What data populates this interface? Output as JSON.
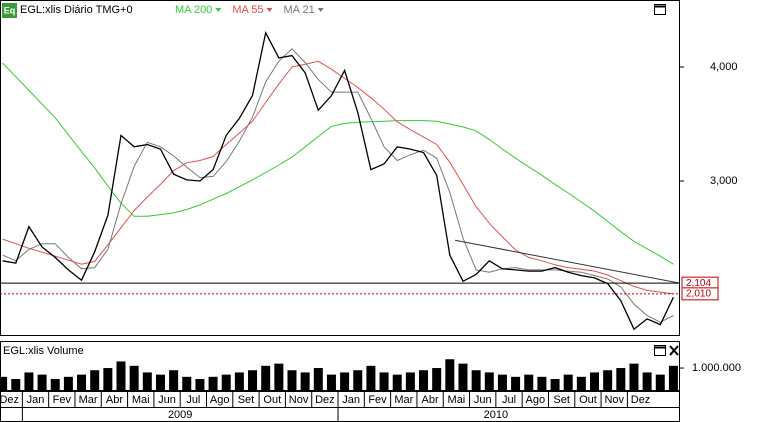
{
  "chart_data": {
    "type": "line",
    "icon": "Eq",
    "title": "EGL:xlis Diário TMG+0",
    "x": [
      0.25,
      0.75,
      1.25,
      1.75,
      2.25,
      2.75,
      3.25,
      3.75,
      4.25,
      4.75,
      5.25,
      5.75,
      6.25,
      6.75,
      7.25,
      7.75,
      8.25,
      8.75,
      9.25,
      9.75,
      10.25,
      10.75,
      11.25,
      11.75,
      12.25,
      12.75,
      13.25,
      13.75,
      14.25,
      14.75,
      15.25,
      15.75,
      16.25,
      16.75,
      17.25,
      17.75,
      18.25,
      18.75,
      19.25,
      19.75,
      20.25,
      20.75,
      21.25,
      21.75,
      22.25,
      22.75,
      23.25,
      23.75,
      24.25,
      24.75,
      25.25,
      25.75
    ],
    "xlim": [
      0.15,
      26.0
    ],
    "ylim": [
      1649,
      4588
    ],
    "yticks": [
      {
        "value": 3000,
        "label": "3,000"
      },
      {
        "value": 4000,
        "label": "4,000"
      }
    ],
    "price": {
      "color": "#000000",
      "values": [
        2300,
        2280,
        2600,
        2420,
        2330,
        2220,
        2130,
        2380,
        2700,
        3400,
        3300,
        3320,
        3280,
        3060,
        3010,
        3000,
        3100,
        3400,
        3550,
        3750,
        4300,
        4080,
        4100,
        3950,
        3620,
        3750,
        3970,
        3600,
        3100,
        3150,
        3300,
        3280,
        3250,
        3050,
        2350,
        2120,
        2180,
        2300,
        2230,
        2220,
        2210,
        2210,
        2240,
        2200,
        2170,
        2150,
        2100,
        1950,
        1700,
        1790,
        1740,
        1980
      ]
    },
    "series": [
      {
        "name": "MA 200",
        "color": "#33cc33",
        "values": [
          4035,
          3915,
          3795,
          3675,
          3555,
          3405,
          3260,
          3115,
          2955,
          2805,
          2690,
          2690,
          2705,
          2720,
          2750,
          2790,
          2840,
          2890,
          2950,
          3010,
          3075,
          3140,
          3210,
          3300,
          3390,
          3480,
          3505,
          3515,
          3520,
          3525,
          3530,
          3530,
          3530,
          3525,
          3500,
          3475,
          3440,
          3365,
          3280,
          3200,
          3125,
          3050,
          2970,
          2895,
          2815,
          2735,
          2645,
          2555,
          2470,
          2405,
          2340,
          2270
        ]
      },
      {
        "name": "MA 55",
        "color": "#e05050",
        "values": [
          2490,
          2450,
          2410,
          2375,
          2340,
          2305,
          2270,
          2295,
          2440,
          2590,
          2740,
          2860,
          2970,
          3090,
          3160,
          3180,
          3215,
          3320,
          3420,
          3525,
          3690,
          3850,
          4000,
          4025,
          4050,
          3980,
          3900,
          3820,
          3730,
          3630,
          3520,
          3450,
          3385,
          3320,
          3165,
          2970,
          2775,
          2630,
          2510,
          2395,
          2330,
          2300,
          2265,
          2240,
          2225,
          2210,
          2175,
          2125,
          2075,
          2040,
          2025,
          2010
        ]
      },
      {
        "name": "MA 21",
        "color": "#777777",
        "values": [
          2350,
          2300,
          2400,
          2450,
          2450,
          2330,
          2230,
          2240,
          2400,
          2800,
          3130,
          3340,
          3300,
          3220,
          3120,
          3030,
          3040,
          3170,
          3350,
          3560,
          3870,
          4050,
          4160,
          4040,
          3890,
          3780,
          3780,
          3780,
          3550,
          3300,
          3180,
          3230,
          3270,
          3200,
          2900,
          2500,
          2220,
          2200,
          2230,
          2240,
          2220,
          2220,
          2220,
          2210,
          2200,
          2170,
          2140,
          2070,
          1920,
          1820,
          1760,
          1820
        ]
      }
    ],
    "trendline": {
      "x": [
        17.45,
        25.99
      ],
      "values": [
        2480,
        2104
      ],
      "color": "#333333"
    },
    "levels": [
      {
        "value": 2104,
        "label": "2,104",
        "color": "#000000"
      },
      {
        "value": 2010,
        "label": "2,010",
        "color": "#c00000"
      }
    ],
    "volume": {
      "title": "EGL:xlis Volume",
      "color": "#000000",
      "ylim": [
        0,
        2140000
      ],
      "yticks": [
        {
          "value": 1000000,
          "label": "1.000.000"
        }
      ],
      "values": [
        600000,
        500000,
        800000,
        700000,
        500000,
        600000,
        700000,
        900000,
        1000000,
        1300000,
        1100000,
        800000,
        700000,
        900000,
        600000,
        500000,
        600000,
        700000,
        800000,
        900000,
        1100000,
        1200000,
        900000,
        800000,
        1000000,
        700000,
        800000,
        900000,
        1100000,
        800000,
        700000,
        800000,
        900000,
        1000000,
        1400000,
        1200000,
        900000,
        800000,
        700000,
        600000,
        700000,
        600000,
        500000,
        700000,
        600000,
        800000,
        900000,
        1000000,
        1200000,
        800000,
        700000,
        1100000
      ]
    },
    "months": [
      "Dez",
      "Jan",
      "Fev",
      "Mar",
      "Abr",
      "Mai",
      "Jun",
      "Jul",
      "Ago",
      "Set",
      "Out",
      "Nov",
      "Dez",
      "Jan",
      "Fev",
      "Mar",
      "Abr",
      "Mai",
      "Jun",
      "Jul",
      "Ago",
      "Set",
      "Out",
      "Nov",
      "Dez"
    ],
    "years": [
      "2009",
      "2010"
    ]
  }
}
